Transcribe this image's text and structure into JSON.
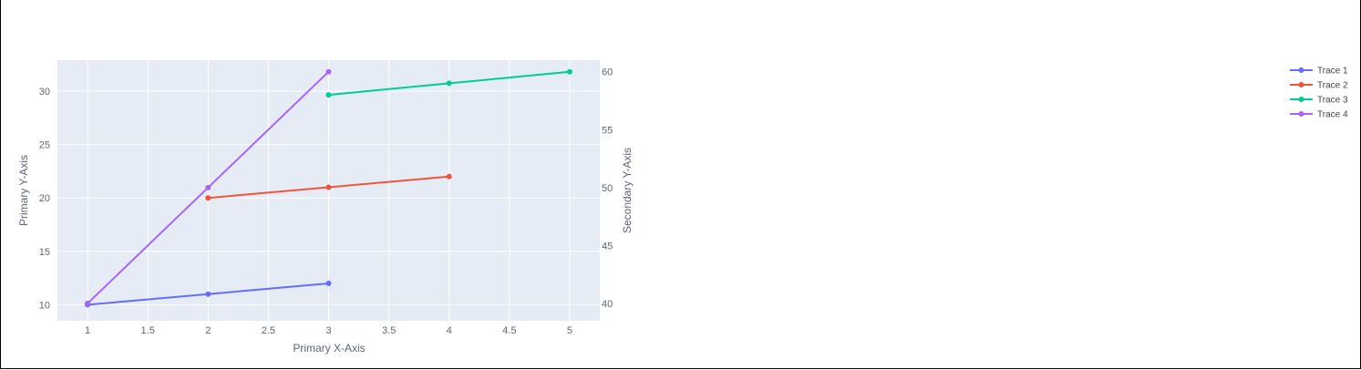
{
  "chart_data": {
    "type": "line",
    "title": "",
    "xlabel": "Primary X-Axis",
    "ylabel": "Primary Y-Axis",
    "y2label": "Secondary Y-Axis",
    "xlim": [
      0.75,
      5.25
    ],
    "ylim": [
      8.5,
      32.9
    ],
    "y2lim": [
      38.5,
      61.0
    ],
    "x_ticks": [
      "1",
      "1.5",
      "2",
      "2.5",
      "3",
      "3.5",
      "4",
      "4.5",
      "5"
    ],
    "y_ticks": [
      "10",
      "15",
      "20",
      "25",
      "30"
    ],
    "y2_ticks": [
      "40",
      "45",
      "50",
      "55",
      "60"
    ],
    "grid": true,
    "legend_position": "top-right",
    "plot_bgcolor": "#e5ecf6",
    "series": [
      {
        "name": "Trace 1",
        "axis": "y",
        "color": "#636efa",
        "x": [
          1,
          2,
          3
        ],
        "y": [
          10,
          11,
          12
        ]
      },
      {
        "name": "Trace 2",
        "axis": "y",
        "color": "#ef553b",
        "x": [
          2,
          3,
          4
        ],
        "y": [
          20,
          21,
          22
        ]
      },
      {
        "name": "Trace 3",
        "axis": "y2",
        "color": "#00cc96",
        "x": [
          3,
          4,
          5
        ],
        "y": [
          58,
          59,
          60
        ]
      },
      {
        "name": "Trace 4",
        "axis": "y2",
        "color": "#ab63fa",
        "x": [
          1,
          2,
          3
        ],
        "y": [
          40,
          50,
          60
        ]
      }
    ]
  }
}
